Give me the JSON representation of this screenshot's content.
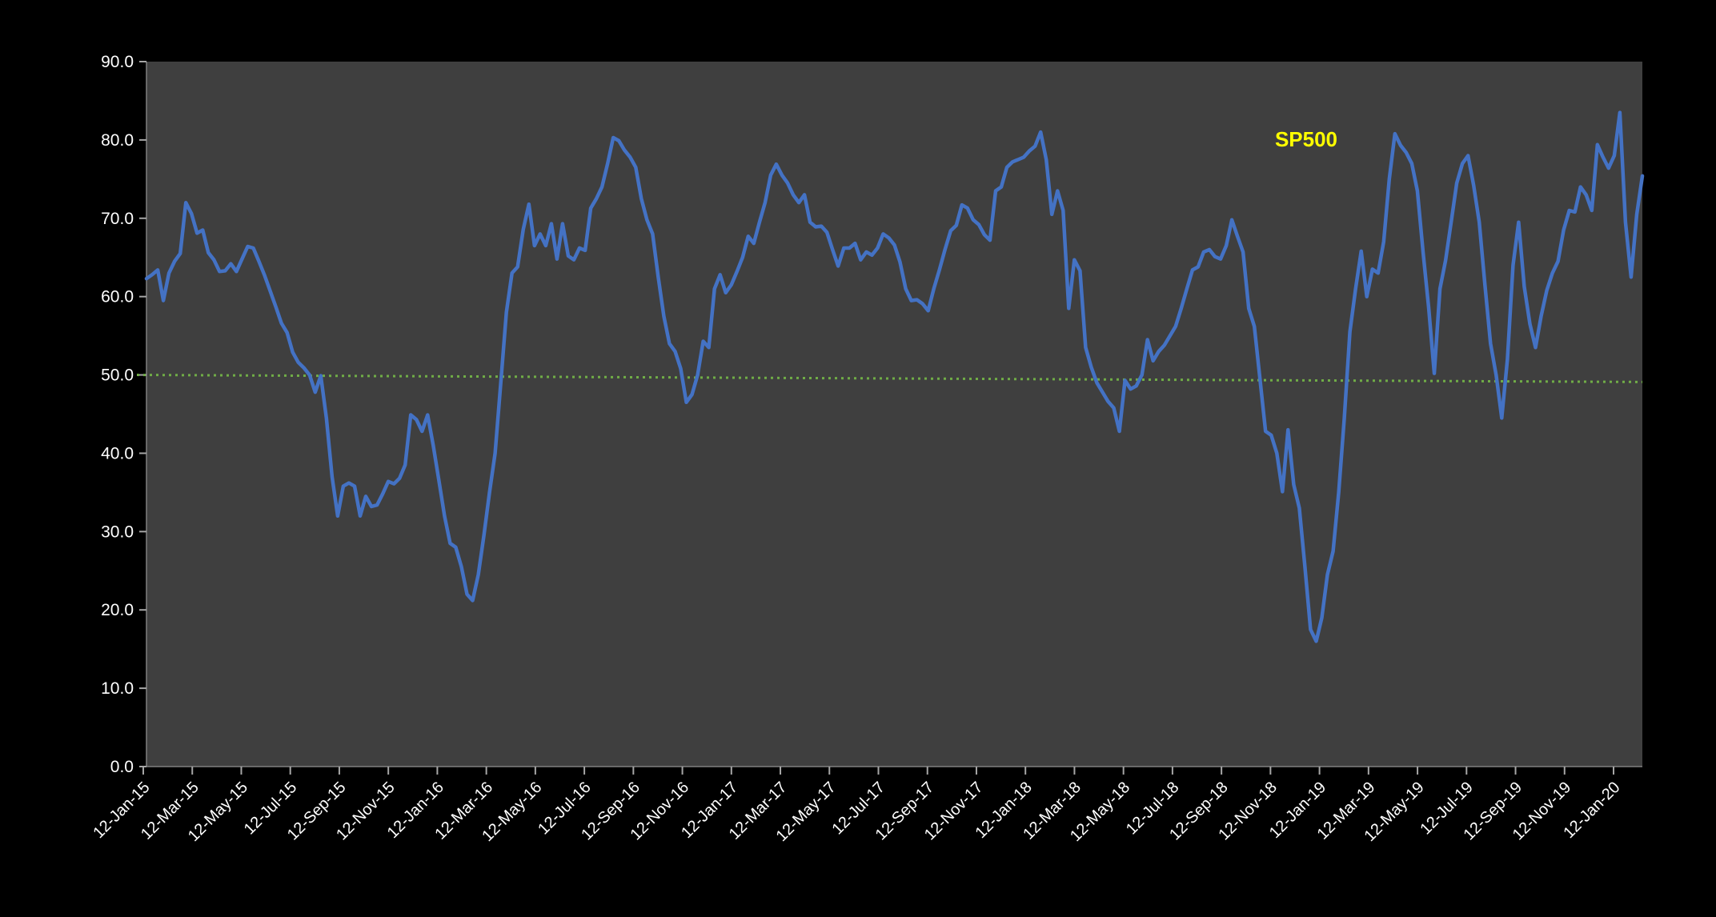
{
  "chart_data": {
    "type": "line",
    "title": "",
    "xlabel": "",
    "ylabel": "",
    "grid": false,
    "outer_bg": "#000000",
    "plot_bg": "#3F3F3F",
    "axis_line_color": "#808080",
    "tick_mark_color": "#A6A6A6",
    "tick_text_color": "#FFFFFF",
    "series_label": {
      "text": "SP500",
      "color": "#FFFF00"
    },
    "ylim": [
      0,
      90
    ],
    "yaxis": {
      "tick_labels": [
        "0.0",
        "10.0",
        "20.0",
        "30.0",
        "40.0",
        "50.0",
        "60.0",
        "70.0",
        "80.0",
        "90.0"
      ]
    },
    "xaxis": {
      "start_date": "12-Jan-15",
      "end_date": "17-Feb-20",
      "frequency": "weekly",
      "tick_labels": [
        "12-Jan-15",
        "12-Mar-15",
        "12-May-15",
        "12-Jul-15",
        "12-Sep-15",
        "12-Nov-15",
        "12-Jan-16",
        "12-Mar-16",
        "12-May-16",
        "12-Jul-16",
        "12-Sep-16",
        "12-Nov-16",
        "12-Jan-17",
        "12-Mar-17",
        "12-May-17",
        "12-Jul-17",
        "12-Sep-17",
        "12-Nov-17",
        "12-Jan-18",
        "12-Mar-18",
        "12-May-18",
        "12-Jul-18",
        "12-Sep-18",
        "12-Nov-18",
        "12-Jan-19",
        "12-Mar-19",
        "12-May-19",
        "12-Jul-19",
        "12-Sep-19",
        "12-Nov-19",
        "12-Jan-20"
      ]
    },
    "reference_line": {
      "style": "dotted",
      "color": "#70AD47",
      "left_value": 50.0,
      "right_value": 49.1
    },
    "series": [
      {
        "name": "SP500",
        "color": "#4472C4",
        "values": [
          62.3,
          62.8,
          63.4,
          59.5,
          63.0,
          64.5,
          65.5,
          72.0,
          70.6,
          68.1,
          68.5,
          65.6,
          64.7,
          63.2,
          63.3,
          64.2,
          63.2,
          64.8,
          66.4,
          66.2,
          64.5,
          62.7,
          60.7,
          58.7,
          56.6,
          55.4,
          52.9,
          51.6,
          50.9,
          50.0,
          47.8,
          49.9,
          44.5,
          37.0,
          32.0,
          35.8,
          36.2,
          35.8,
          32.0,
          34.5,
          33.2,
          33.4,
          34.8,
          36.4,
          36.1,
          36.8,
          38.5,
          44.9,
          44.3,
          42.8,
          44.9,
          41.0,
          36.5,
          32.0,
          28.5,
          28.0,
          25.5,
          22.0,
          21.2,
          24.5,
          29.5,
          35.0,
          40.0,
          49.0,
          58.0,
          63.0,
          63.8,
          68.6,
          71.8,
          66.5,
          68.0,
          66.5,
          69.3,
          64.8,
          69.3,
          65.2,
          64.7,
          66.2,
          65.9,
          71.3,
          72.5,
          74.0,
          77.0,
          80.3,
          79.9,
          78.7,
          77.8,
          76.5,
          72.5,
          69.8,
          68.0,
          62.5,
          57.5,
          54.0,
          53.0,
          50.8,
          46.5,
          47.5,
          50.0,
          54.3,
          53.5,
          61.0,
          62.8,
          60.5,
          61.5,
          63.2,
          65.0,
          67.7,
          66.8,
          69.5,
          72.0,
          75.5,
          76.9,
          75.5,
          74.5,
          73.0,
          72.0,
          73.0,
          69.5,
          68.9,
          69.0,
          68.2,
          66.0,
          63.9,
          66.2,
          66.2,
          66.8,
          64.7,
          65.7,
          65.3,
          66.2,
          68.0,
          67.5,
          66.6,
          64.4,
          61.0,
          59.5,
          59.6,
          59.1,
          58.2,
          61.0,
          63.4,
          66.0,
          68.4,
          69.1,
          71.7,
          71.3,
          69.8,
          69.2,
          67.9,
          67.2,
          73.5,
          74.0,
          76.5,
          77.2,
          77.5,
          77.8,
          78.6,
          79.2,
          81.0,
          77.5,
          70.5,
          73.5,
          71.0,
          58.5,
          64.7,
          63.3,
          53.5,
          51.0,
          49.0,
          47.8,
          46.6,
          45.8,
          42.8,
          49.3,
          48.2,
          48.6,
          50.0,
          54.5,
          51.8,
          53.0,
          53.8,
          55.0,
          56.2,
          58.5,
          61.0,
          63.4,
          63.8,
          65.7,
          66.0,
          65.1,
          64.8,
          66.5,
          69.8,
          67.7,
          65.7,
          58.5,
          56.2,
          49.5,
          42.8,
          42.3,
          40.0,
          35.1,
          43.0,
          36.0,
          33.0,
          25.5,
          17.5,
          16.0,
          19.0,
          24.5,
          27.5,
          35.0,
          44.5,
          55.5,
          61.0,
          65.8,
          60.0,
          63.5,
          63.0,
          67.0,
          75.0,
          80.8,
          79.3,
          78.4,
          77.0,
          73.5,
          65.7,
          58.6,
          50.2,
          61.0,
          64.6,
          69.5,
          74.5,
          77.0,
          78.0,
          74.2,
          69.5,
          61.5,
          54.0,
          50.0,
          44.5,
          52.0,
          64.0,
          69.5,
          61.3,
          56.5,
          53.5,
          57.5,
          60.8,
          63.0,
          64.5,
          68.5,
          71.0,
          70.8,
          74.0,
          73.0,
          71.0,
          79.4,
          77.8,
          76.4,
          78.0,
          83.5,
          69.5,
          62.5,
          70.5,
          75.4
        ]
      }
    ]
  }
}
